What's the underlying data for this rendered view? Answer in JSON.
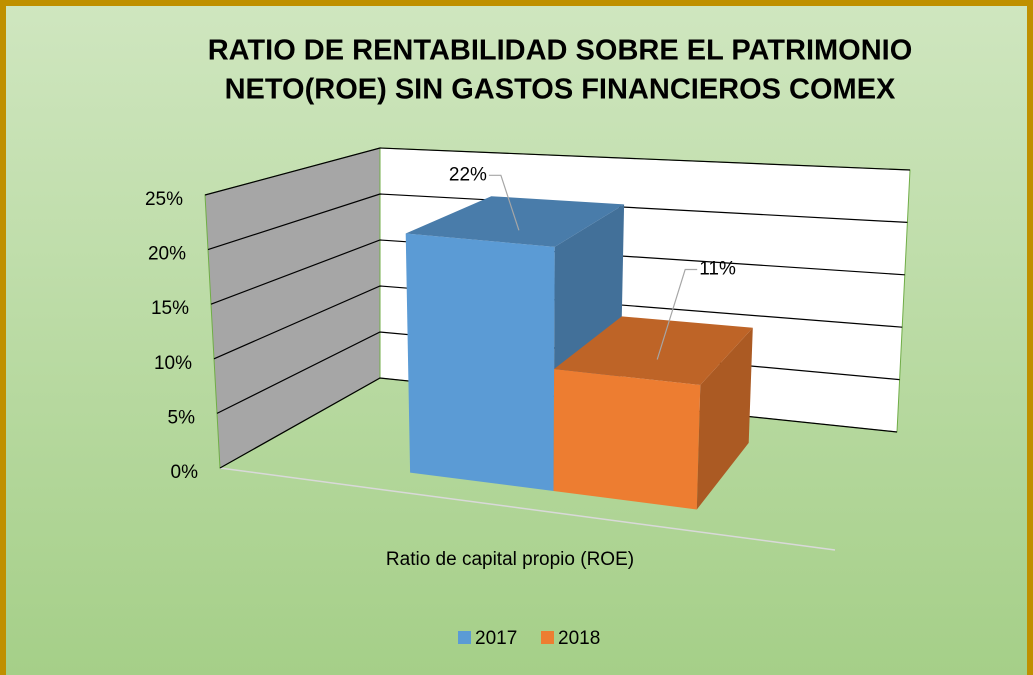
{
  "chart_data": {
    "type": "bar3d",
    "title": [
      "RATIO DE RENTABILIDAD SOBRE EL PATRIMONIO",
      "NETO(ROE)  SIN GASTOS FINANCIEROS COMEX"
    ],
    "categories": [
      "Ratio de capital propio (ROE)"
    ],
    "series": [
      {
        "name": "2017",
        "color": "#5b9bd5",
        "values": [
          22
        ],
        "value_labels": [
          "22%"
        ]
      },
      {
        "name": "2018",
        "color": "#ed7d31",
        "values": [
          11
        ],
        "value_labels": [
          "11%"
        ]
      }
    ],
    "ylim": [
      0,
      25
    ],
    "yticks": [
      {
        "value": 0,
        "label": "0%"
      },
      {
        "value": 5,
        "label": "5%"
      },
      {
        "value": 10,
        "label": "10%"
      },
      {
        "value": 15,
        "label": "15%"
      },
      {
        "value": 20,
        "label": "20%"
      },
      {
        "value": 25,
        "label": "25%"
      }
    ],
    "grid": true,
    "legend": "bottom"
  }
}
